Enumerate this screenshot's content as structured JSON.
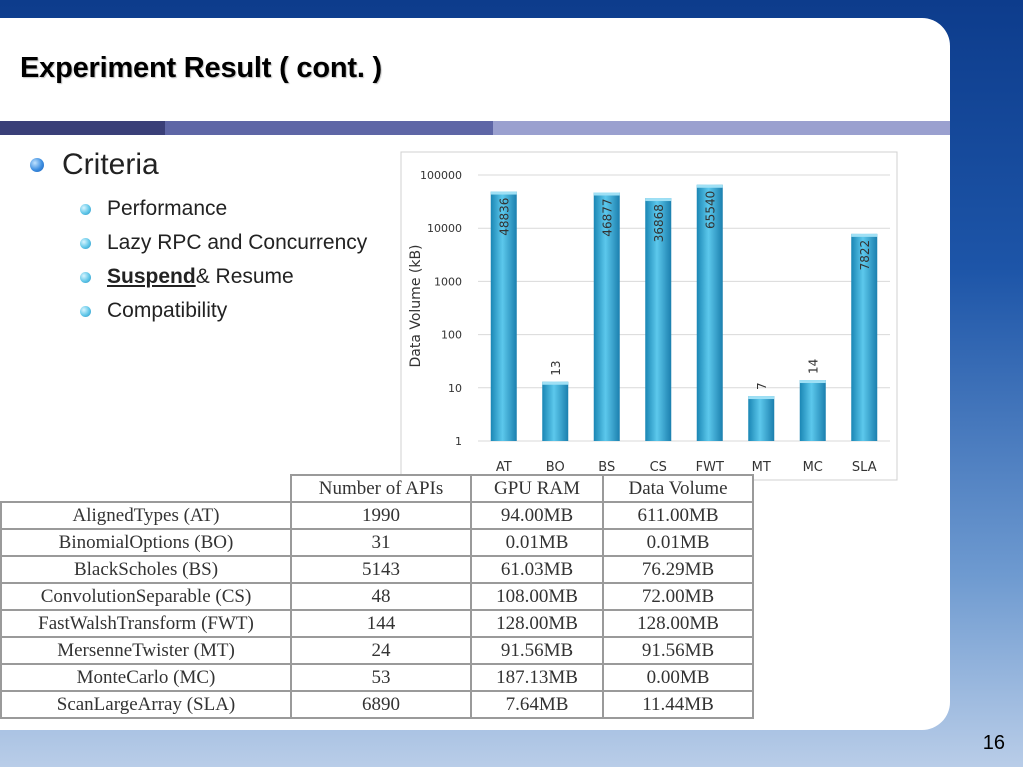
{
  "slide": {
    "title": "Experiment Result ( cont. )",
    "page_number": "16",
    "strip_colors": [
      "#3a3f78",
      "#5e66a6",
      "#9aa0cf"
    ]
  },
  "bullets": {
    "main": "Criteria",
    "items": [
      {
        "label": "Performance"
      },
      {
        "label": "Lazy RPC and Concurrency"
      },
      {
        "bold_label": "Suspend",
        "label": "& Resume"
      },
      {
        "label": "Compatibility"
      }
    ]
  },
  "chart_data": {
    "type": "bar",
    "title": "",
    "xlabel": "",
    "ylabel": "Data Volume (kB)",
    "y_scale": "log",
    "ylim": [
      1,
      100000
    ],
    "y_ticks": [
      "1",
      "10",
      "100",
      "1000",
      "10000",
      "100000"
    ],
    "grid": true,
    "bar_color": "#2fa7cf",
    "categories": [
      "AT",
      "BO",
      "BS",
      "CS",
      "FWT",
      "MT",
      "MC",
      "SLA"
    ],
    "values": [
      48836,
      13,
      46877,
      36868,
      65540,
      7,
      14,
      7822
    ],
    "data_labels": [
      "48836",
      "13",
      "46877",
      "36868",
      "65540",
      "7",
      "14",
      "7822"
    ]
  },
  "table": {
    "headers": [
      "",
      "Number of APIs",
      "GPU RAM",
      "Data Volume"
    ],
    "rows": [
      [
        "AlignedTypes (AT)",
        "1990",
        "94.00MB",
        "611.00MB"
      ],
      [
        "BinomialOptions (BO)",
        "31",
        "0.01MB",
        "0.01MB"
      ],
      [
        "BlackScholes (BS)",
        "5143",
        "61.03MB",
        "76.29MB"
      ],
      [
        "ConvolutionSeparable (CS)",
        "48",
        "108.00MB",
        "72.00MB"
      ],
      [
        "FastWalshTransform (FWT)",
        "144",
        "128.00MB",
        "128.00MB"
      ],
      [
        "MersenneTwister (MT)",
        "24",
        "91.56MB",
        "91.56MB"
      ],
      [
        "MonteCarlo (MC)",
        "53",
        "187.13MB",
        "0.00MB"
      ],
      [
        "ScanLargeArray (SLA)",
        "6890",
        "7.64MB",
        "11.44MB"
      ]
    ]
  }
}
